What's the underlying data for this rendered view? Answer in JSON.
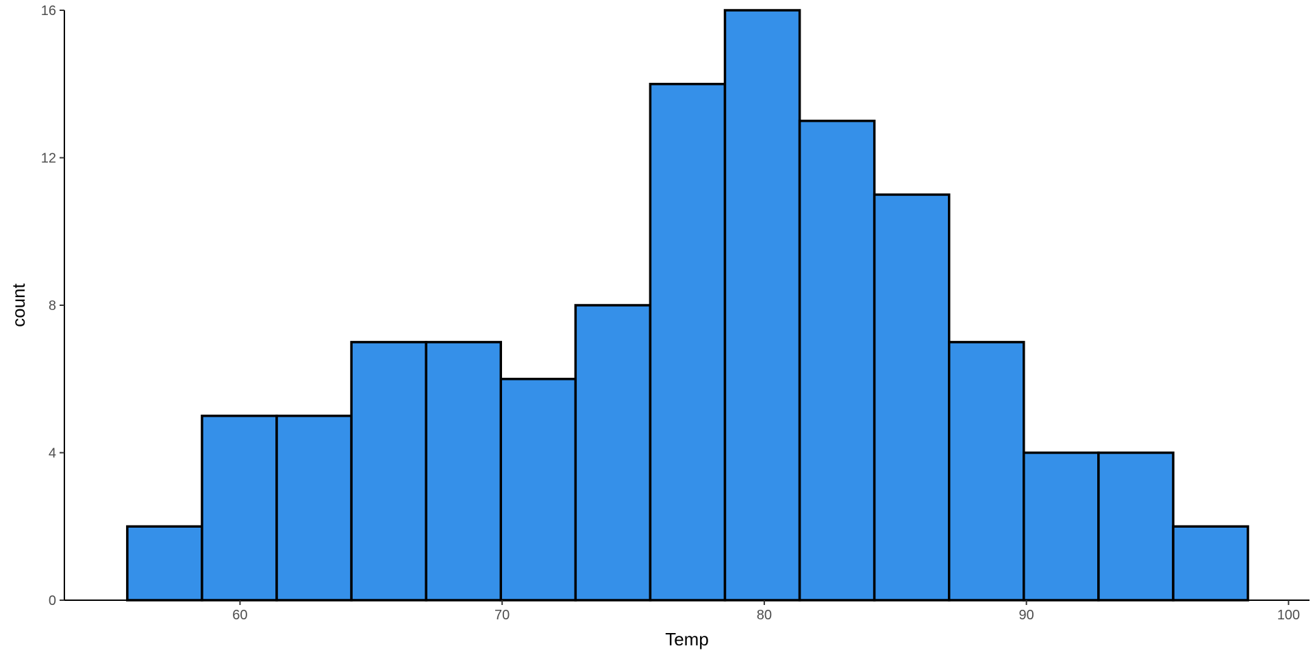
{
  "chart_data": {
    "type": "bar",
    "subtype": "histogram",
    "title": "",
    "xlabel": "Temp",
    "ylabel": "count",
    "xlim": [
      53.3,
      100.8
    ],
    "ylim": [
      0,
      16
    ],
    "x_ticks": [
      60,
      70,
      80,
      90,
      100
    ],
    "y_ticks": [
      0,
      4,
      8,
      12,
      16
    ],
    "grid": false,
    "legend": "none",
    "bin_width": 2.85,
    "bins": [
      {
        "x_start": 55.7,
        "x_end": 58.55,
        "count": 2
      },
      {
        "x_start": 58.55,
        "x_end": 61.4,
        "count": 5
      },
      {
        "x_start": 61.4,
        "x_end": 64.25,
        "count": 5
      },
      {
        "x_start": 64.25,
        "x_end": 67.1,
        "count": 7
      },
      {
        "x_start": 67.1,
        "x_end": 69.95,
        "count": 7
      },
      {
        "x_start": 69.95,
        "x_end": 72.8,
        "count": 6
      },
      {
        "x_start": 72.8,
        "x_end": 75.65,
        "count": 8
      },
      {
        "x_start": 75.65,
        "x_end": 78.5,
        "count": 14
      },
      {
        "x_start": 78.5,
        "x_end": 81.35,
        "count": 16
      },
      {
        "x_start": 81.35,
        "x_end": 84.2,
        "count": 13
      },
      {
        "x_start": 84.2,
        "x_end": 87.05,
        "count": 11
      },
      {
        "x_start": 87.05,
        "x_end": 89.9,
        "count": 7
      },
      {
        "x_start": 89.9,
        "x_end": 92.75,
        "count": 4
      },
      {
        "x_start": 92.75,
        "x_end": 95.6,
        "count": 4
      },
      {
        "x_start": 95.6,
        "x_end": 98.45,
        "count": 2
      }
    ],
    "colors": {
      "bar_fill": "#3590E9",
      "bar_outline": "#000000",
      "axis": "#000000",
      "tick_text": "#4d4d4d"
    }
  }
}
